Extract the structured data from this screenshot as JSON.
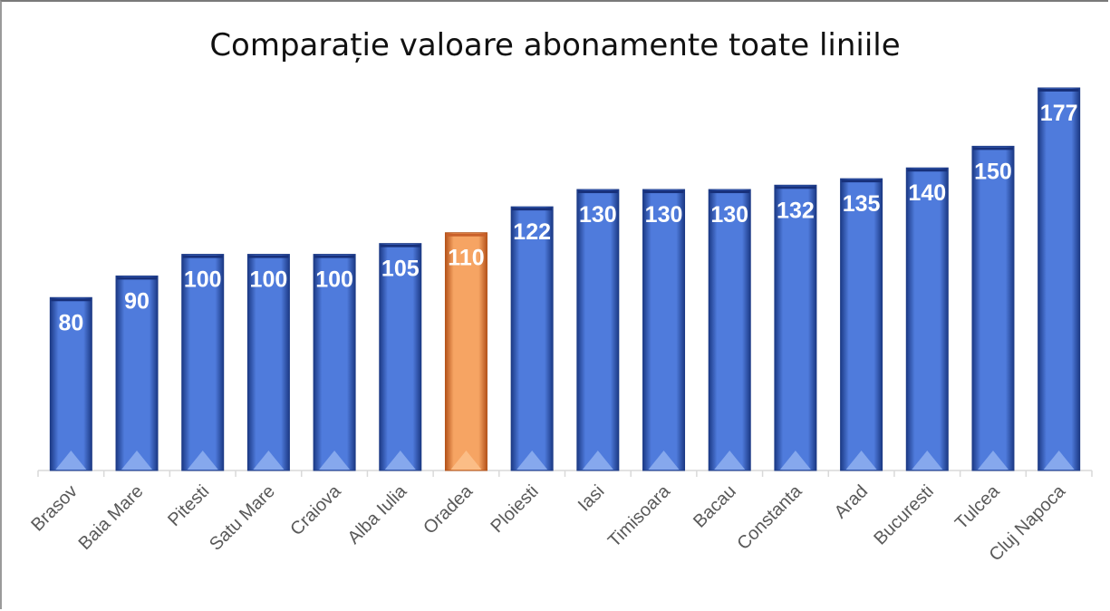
{
  "chart_data": {
    "type": "bar",
    "title": "Comparație valoare abonamente toate liniile",
    "xlabel": "",
    "ylabel": "",
    "categories": [
      "Brasov",
      "Baia Mare",
      "Pitesti",
      "Satu Mare",
      "Craiova",
      "Alba Iulia",
      "Oradea",
      "Ploiesti",
      "Iasi",
      "Timisoara",
      "Bacau",
      "Constanta",
      "Arad",
      "Bucuresti",
      "Tulcea",
      "Cluj Napoca"
    ],
    "series": [
      {
        "values": [
          80,
          90,
          100,
          100,
          100,
          105,
          110,
          122,
          130,
          130,
          130,
          132,
          135,
          140,
          150,
          177
        ]
      }
    ],
    "data_labels": [
      "80",
      "90",
      "100",
      "100",
      "100",
      "105",
      "110",
      "122",
      "130",
      "130",
      "130",
      "132",
      "135",
      "140",
      "150",
      "177"
    ],
    "highlight_category": "Oradea",
    "colors": {
      "bar": "#2f55b4",
      "bar_light": "#4f7bdc",
      "bar_dark": "#1c3a86",
      "highlight": "#e8782e",
      "highlight_light": "#f6a463",
      "highlight_dark": "#b5531a",
      "axis": "#d9d9d9",
      "tick_text": "#595959"
    },
    "ylim": [
      0,
      177
    ],
    "grid": false,
    "legend": "none"
  }
}
